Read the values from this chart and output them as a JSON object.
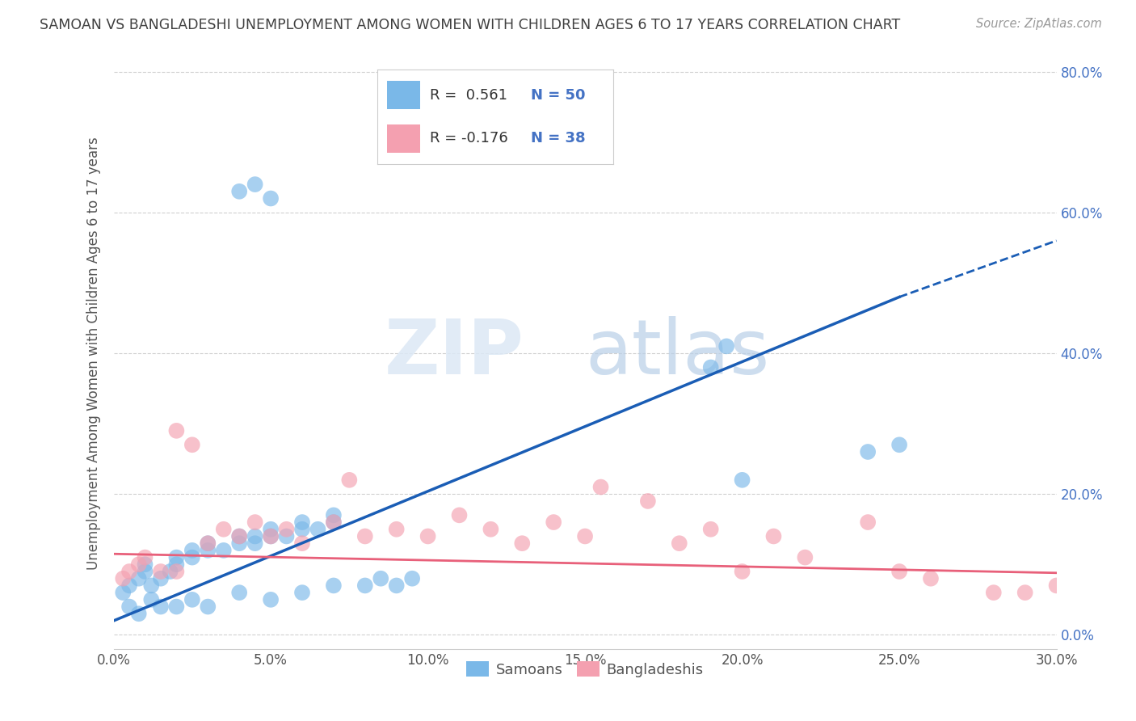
{
  "title": "SAMOAN VS BANGLADESHI UNEMPLOYMENT AMONG WOMEN WITH CHILDREN AGES 6 TO 17 YEARS CORRELATION CHART",
  "source": "Source: ZipAtlas.com",
  "ylabel": "Unemployment Among Women with Children Ages 6 to 17 years",
  "xlim": [
    0.0,
    0.3
  ],
  "ylim": [
    -0.02,
    0.82
  ],
  "xticks": [
    0.0,
    0.05,
    0.1,
    0.15,
    0.2,
    0.25,
    0.3
  ],
  "yticks": [
    0.0,
    0.2,
    0.4,
    0.6,
    0.8
  ],
  "xtick_labels": [
    "0.0%",
    "5.0%",
    "10.0%",
    "15.0%",
    "20.0%",
    "25.0%",
    "30.0%"
  ],
  "ytick_labels_right": [
    "0.0%",
    "20.0%",
    "40.0%",
    "60.0%",
    "80.0%"
  ],
  "samoan_color": "#7ab8e8",
  "bangladeshi_color": "#f4a0b0",
  "samoan_line_color": "#1a5db5",
  "bangladeshi_line_color": "#e8607a",
  "legend_label_samoan": "Samoans",
  "legend_label_bangladeshi": "Bangladeshis",
  "watermark_zip": "ZIP",
  "watermark_atlas": "atlas",
  "background_color": "#ffffff",
  "grid_color": "#d0d0d0",
  "title_color": "#404040",
  "samoan_x": [
    0.003,
    0.005,
    0.008,
    0.01,
    0.01,
    0.012,
    0.015,
    0.018,
    0.02,
    0.02,
    0.025,
    0.025,
    0.03,
    0.03,
    0.035,
    0.04,
    0.04,
    0.045,
    0.045,
    0.05,
    0.05,
    0.055,
    0.06,
    0.06,
    0.065,
    0.07,
    0.07,
    0.04,
    0.045,
    0.05,
    0.005,
    0.008,
    0.012,
    0.015,
    0.02,
    0.025,
    0.03,
    0.04,
    0.05,
    0.06,
    0.07,
    0.08,
    0.085,
    0.09,
    0.095,
    0.19,
    0.195,
    0.2,
    0.24,
    0.25
  ],
  "samoan_y": [
    0.06,
    0.07,
    0.08,
    0.09,
    0.1,
    0.07,
    0.08,
    0.09,
    0.1,
    0.11,
    0.11,
    0.12,
    0.12,
    0.13,
    0.12,
    0.13,
    0.14,
    0.13,
    0.14,
    0.14,
    0.15,
    0.14,
    0.15,
    0.16,
    0.15,
    0.16,
    0.17,
    0.63,
    0.64,
    0.62,
    0.04,
    0.03,
    0.05,
    0.04,
    0.04,
    0.05,
    0.04,
    0.06,
    0.05,
    0.06,
    0.07,
    0.07,
    0.08,
    0.07,
    0.08,
    0.38,
    0.41,
    0.22,
    0.26,
    0.27
  ],
  "bangladeshi_x": [
    0.003,
    0.005,
    0.008,
    0.01,
    0.015,
    0.02,
    0.025,
    0.03,
    0.035,
    0.04,
    0.045,
    0.05,
    0.055,
    0.06,
    0.07,
    0.075,
    0.08,
    0.09,
    0.1,
    0.11,
    0.12,
    0.13,
    0.14,
    0.15,
    0.155,
    0.17,
    0.18,
    0.19,
    0.2,
    0.21,
    0.22,
    0.24,
    0.25,
    0.26,
    0.28,
    0.29,
    0.3,
    0.02
  ],
  "bangladeshi_y": [
    0.08,
    0.09,
    0.1,
    0.11,
    0.09,
    0.29,
    0.27,
    0.13,
    0.15,
    0.14,
    0.16,
    0.14,
    0.15,
    0.13,
    0.16,
    0.22,
    0.14,
    0.15,
    0.14,
    0.17,
    0.15,
    0.13,
    0.16,
    0.14,
    0.21,
    0.19,
    0.13,
    0.15,
    0.09,
    0.14,
    0.11,
    0.16,
    0.09,
    0.08,
    0.06,
    0.06,
    0.07,
    0.09
  ],
  "samoan_trendline": [
    [
      0.0,
      0.25
    ],
    [
      0.02,
      0.48
    ]
  ],
  "samoan_trendline_dash": [
    [
      0.25,
      0.3
    ],
    [
      0.48,
      0.56
    ]
  ],
  "bangladeshi_trendline": [
    [
      0.0,
      0.3
    ],
    [
      0.115,
      0.088
    ]
  ]
}
